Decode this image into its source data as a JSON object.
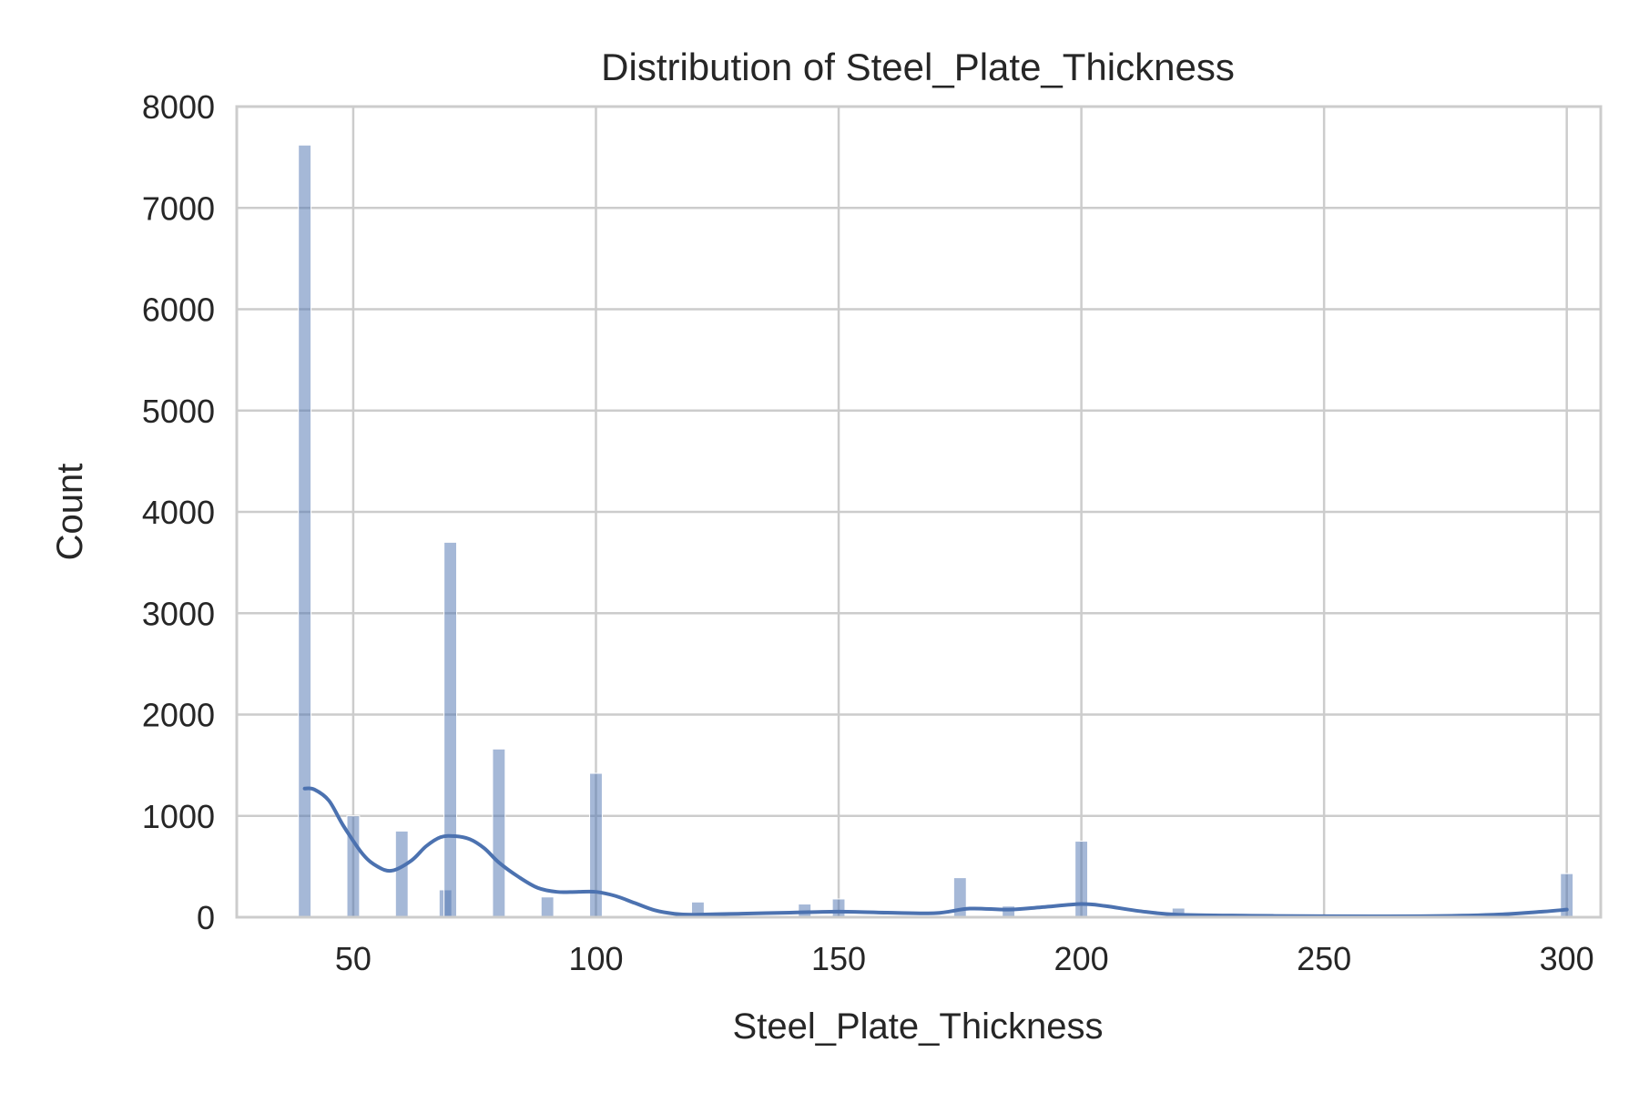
{
  "chart_data": {
    "type": "bar",
    "subtype": "histogram-with-kde",
    "title": "Distribution of Steel_Plate_Thickness",
    "xlabel": "Steel_Plate_Thickness",
    "ylabel": "Count",
    "xlim": [
      26,
      307
    ],
    "ylim": [
      0,
      8000
    ],
    "xticks": [
      50,
      100,
      150,
      200,
      250,
      300
    ],
    "yticks": [
      0,
      1000,
      2000,
      3000,
      4000,
      5000,
      6000,
      7000,
      8000
    ],
    "grid": true,
    "color": "#4c72b0",
    "bins": [
      {
        "x": 40,
        "count": 7620
      },
      {
        "x": 50,
        "count": 1000
      },
      {
        "x": 60,
        "count": 850
      },
      {
        "x": 69,
        "count": 270
      },
      {
        "x": 70,
        "count": 3700
      },
      {
        "x": 80,
        "count": 1660
      },
      {
        "x": 90,
        "count": 200
      },
      {
        "x": 100,
        "count": 1420
      },
      {
        "x": 121,
        "count": 150
      },
      {
        "x": 143,
        "count": 130
      },
      {
        "x": 150,
        "count": 180
      },
      {
        "x": 175,
        "count": 390
      },
      {
        "x": 185,
        "count": 110
      },
      {
        "x": 200,
        "count": 750
      },
      {
        "x": 220,
        "count": 90
      },
      {
        "x": 300,
        "count": 430
      }
    ],
    "kde": {
      "x": [
        40,
        42,
        45,
        48,
        52,
        55,
        58,
        62,
        65,
        68,
        71,
        74,
        77,
        80,
        84,
        88,
        92,
        96,
        100,
        104,
        108,
        112,
        116,
        120,
        130,
        140,
        150,
        160,
        170,
        177,
        185,
        192,
        200,
        205,
        212,
        220,
        235,
        250,
        270,
        285,
        295,
        300
      ],
      "y": [
        1270,
        1260,
        1150,
        900,
        620,
        500,
        460,
        560,
        700,
        790,
        800,
        770,
        680,
        540,
        400,
        290,
        250,
        250,
        250,
        210,
        140,
        70,
        35,
        25,
        35,
        45,
        55,
        45,
        40,
        85,
        75,
        100,
        130,
        110,
        60,
        25,
        15,
        10,
        10,
        25,
        55,
        75
      ]
    }
  }
}
